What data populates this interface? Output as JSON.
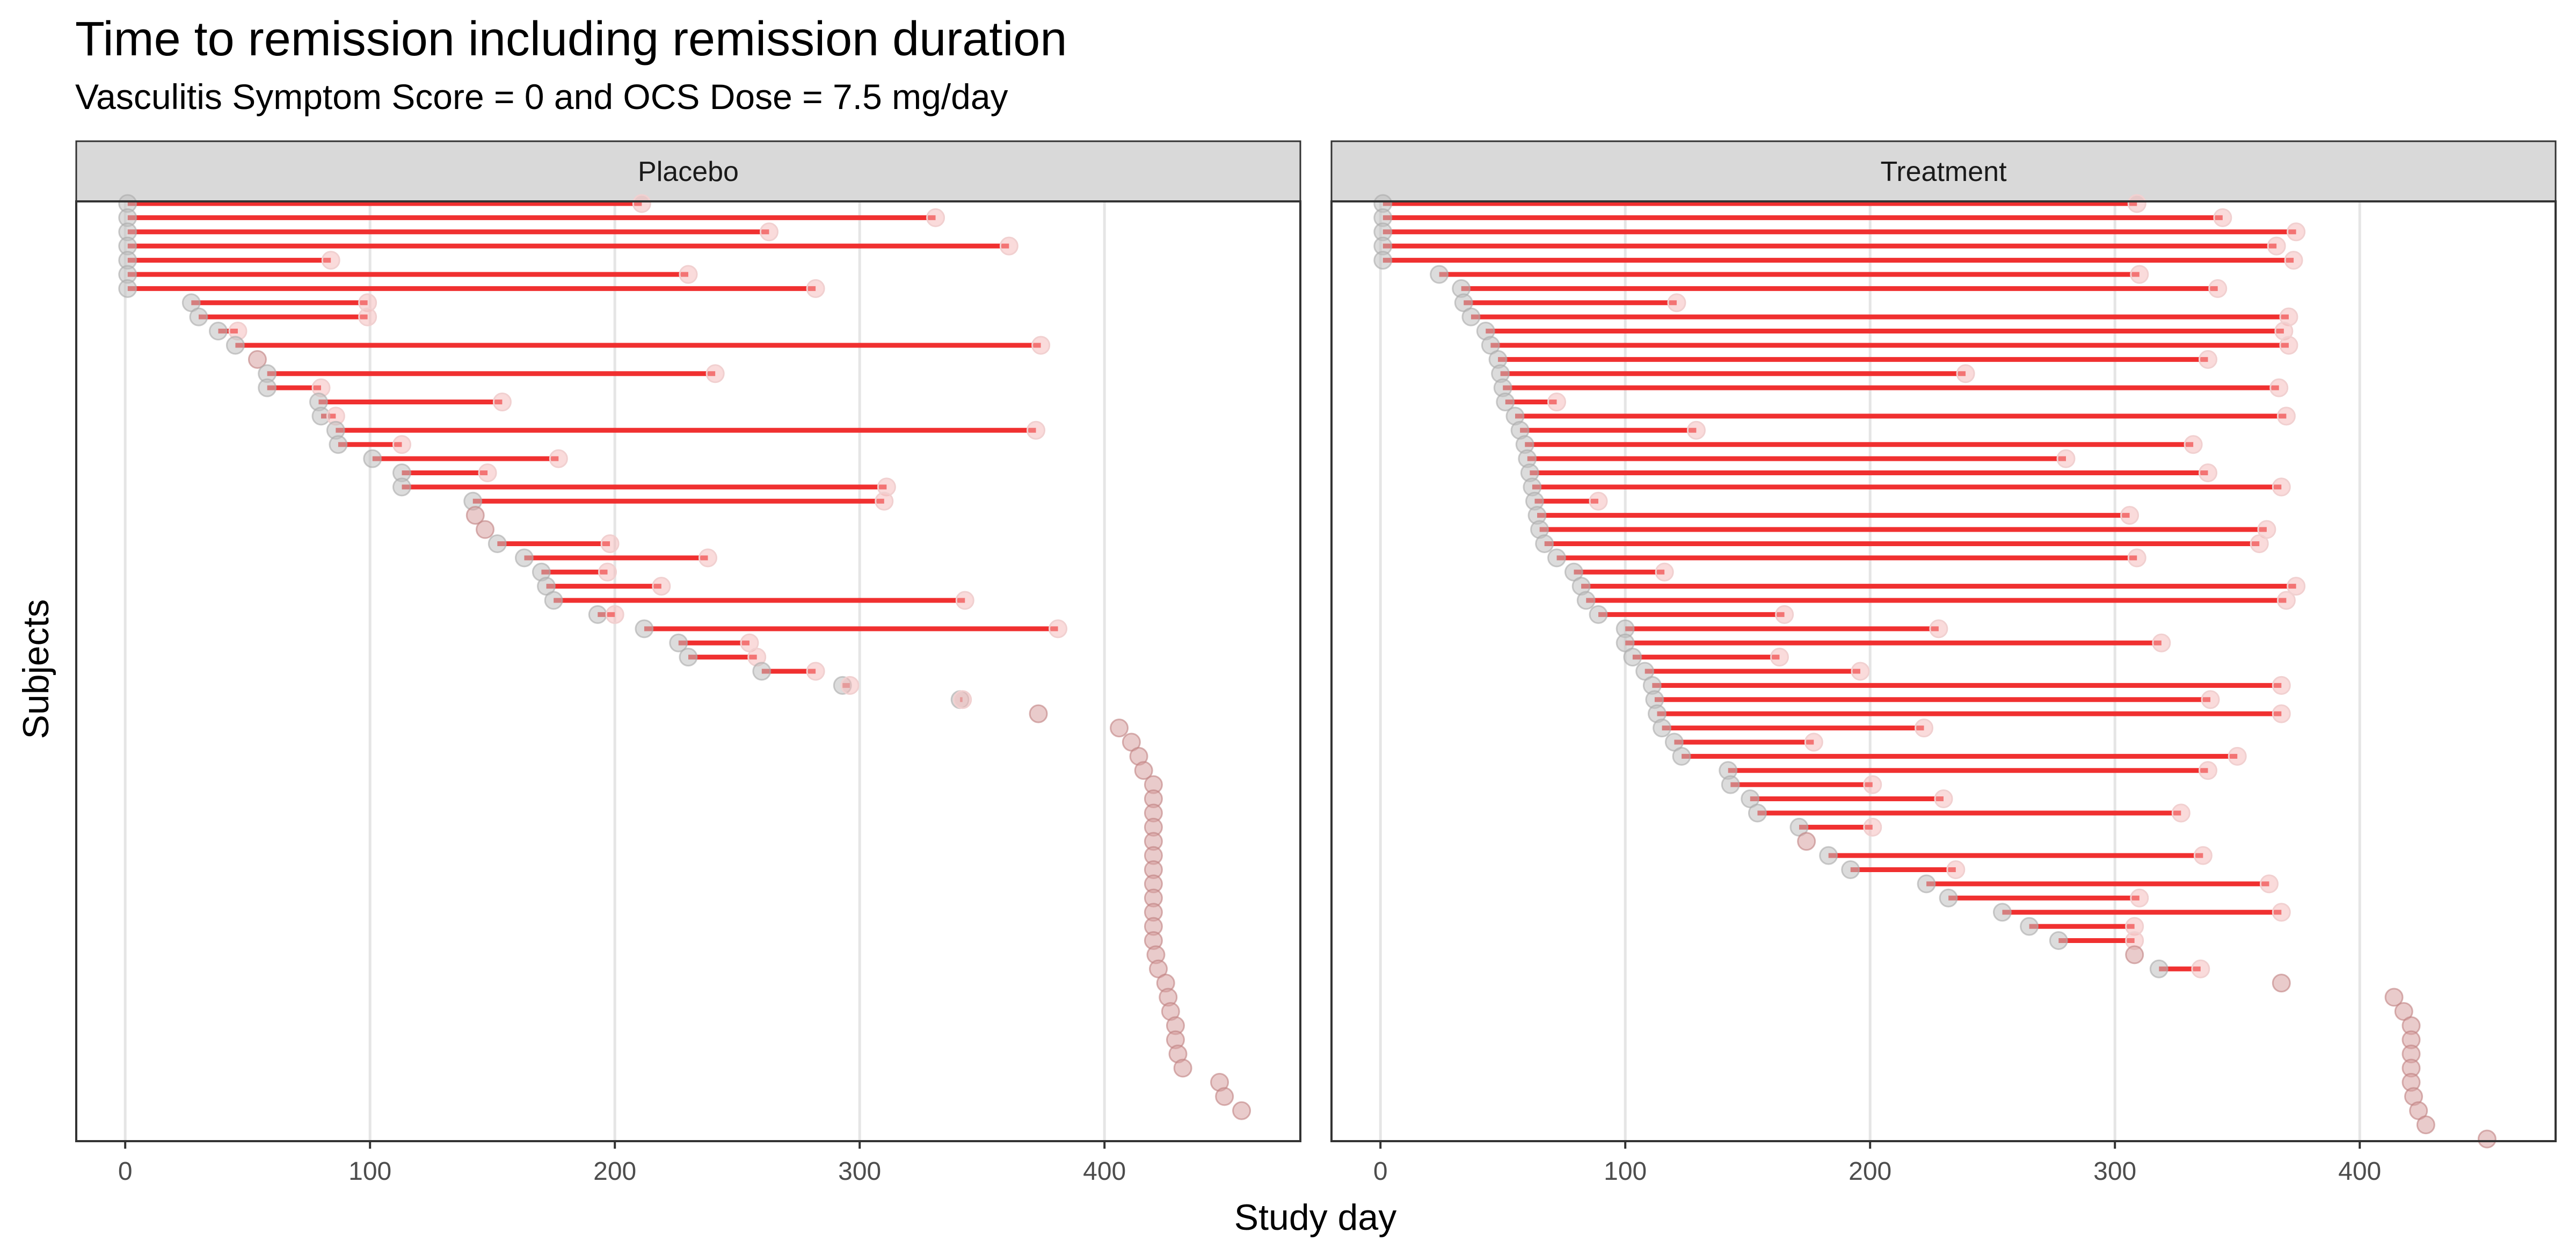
{
  "title": "Time to remission including remission duration",
  "subtitle": "Vasculitis Symptom Score = 0 and OCS Dose = 7.5 mg/day",
  "chart_data": {
    "type": "scatter",
    "title": "Time to remission including remission duration",
    "subtitle": "Vasculitis Symptom Score = 0 and OCS Dose = 7.5 mg/day",
    "xlabel": "Study day",
    "ylabel": "Subjects",
    "xlim": [
      -20,
      480
    ],
    "xticks": [
      0,
      100,
      200,
      300,
      400
    ],
    "grid": true,
    "colors": {
      "segment": "#f03030",
      "start_point": "#c0c0c0",
      "end_point": "#f6b8b8",
      "end_point_stroke": "#f1d0d0",
      "no_remission_point": "#d7a0a0",
      "no_remission_stroke": "#c08080",
      "strip_fill": "#d9d9d9",
      "gridline": "#e5e5e5"
    },
    "panels": [
      {
        "name": "Placebo",
        "subjects": [
          {
            "start": 1,
            "end": 211
          },
          {
            "start": 1,
            "end": 331
          },
          {
            "start": 1,
            "end": 263
          },
          {
            "start": 1,
            "end": 361
          },
          {
            "start": 1,
            "end": 84
          },
          {
            "start": 1,
            "end": 230
          },
          {
            "start": 1,
            "end": 282
          },
          {
            "start": 27,
            "end": 99
          },
          {
            "start": 30,
            "end": 99
          },
          {
            "start": 38,
            "end": 46
          },
          {
            "start": 45,
            "end": 374
          },
          {
            "start": 54,
            "end": null
          },
          {
            "start": 58,
            "end": 241
          },
          {
            "start": 58,
            "end": 80
          },
          {
            "start": 79,
            "end": 154
          },
          {
            "start": 80,
            "end": 86
          },
          {
            "start": 86,
            "end": 372
          },
          {
            "start": 87,
            "end": 113
          },
          {
            "start": 101,
            "end": 177
          },
          {
            "start": 113,
            "end": 148
          },
          {
            "start": 113,
            "end": 311
          },
          {
            "start": 142,
            "end": 310
          },
          {
            "start": 143,
            "end": null
          },
          {
            "start": 147,
            "end": null
          },
          {
            "start": 152,
            "end": 198
          },
          {
            "start": 163,
            "end": 238
          },
          {
            "start": 170,
            "end": 197
          },
          {
            "start": 172,
            "end": 219
          },
          {
            "start": 175,
            "end": 343
          },
          {
            "start": 193,
            "end": 200
          },
          {
            "start": 212,
            "end": 381
          },
          {
            "start": 226,
            "end": 255
          },
          {
            "start": 230,
            "end": 258
          },
          {
            "start": 260,
            "end": 282
          },
          {
            "start": 293,
            "end": 296
          },
          {
            "start": 341,
            "end": 342
          },
          {
            "start": 373,
            "end": null
          },
          {
            "start": 406,
            "end": null
          },
          {
            "start": 411,
            "end": null
          },
          {
            "start": 414,
            "end": null
          },
          {
            "start": 416,
            "end": null
          },
          {
            "start": 420,
            "end": null
          },
          {
            "start": 420,
            "end": null
          },
          {
            "start": 420,
            "end": null
          },
          {
            "start": 420,
            "end": null
          },
          {
            "start": 420,
            "end": null
          },
          {
            "start": 420,
            "end": null
          },
          {
            "start": 420,
            "end": null
          },
          {
            "start": 420,
            "end": null
          },
          {
            "start": 420,
            "end": null
          },
          {
            "start": 420,
            "end": null
          },
          {
            "start": 420,
            "end": null
          },
          {
            "start": 420,
            "end": null
          },
          {
            "start": 421,
            "end": null
          },
          {
            "start": 422,
            "end": null
          },
          {
            "start": 425,
            "end": null
          },
          {
            "start": 426,
            "end": null
          },
          {
            "start": 427,
            "end": null
          },
          {
            "start": 429,
            "end": null
          },
          {
            "start": 429,
            "end": null
          },
          {
            "start": 430,
            "end": null
          },
          {
            "start": 432,
            "end": null
          },
          {
            "start": 447,
            "end": null
          },
          {
            "start": 449,
            "end": null
          },
          {
            "start": 456,
            "end": null
          }
        ]
      },
      {
        "name": "Treatment",
        "subjects": [
          {
            "start": 1,
            "end": 309
          },
          {
            "start": 1,
            "end": 344
          },
          {
            "start": 1,
            "end": 374
          },
          {
            "start": 1,
            "end": 366
          },
          {
            "start": 1,
            "end": 373
          },
          {
            "start": 24,
            "end": 310
          },
          {
            "start": 33,
            "end": 342
          },
          {
            "start": 34,
            "end": 121
          },
          {
            "start": 37,
            "end": 371
          },
          {
            "start": 43,
            "end": 369
          },
          {
            "start": 45,
            "end": 371
          },
          {
            "start": 48,
            "end": 338
          },
          {
            "start": 49,
            "end": 239
          },
          {
            "start": 50,
            "end": 367
          },
          {
            "start": 51,
            "end": 72
          },
          {
            "start": 55,
            "end": 370
          },
          {
            "start": 57,
            "end": 129
          },
          {
            "start": 59,
            "end": 332
          },
          {
            "start": 60,
            "end": 280
          },
          {
            "start": 61,
            "end": 338
          },
          {
            "start": 62,
            "end": 368
          },
          {
            "start": 63,
            "end": 89
          },
          {
            "start": 64,
            "end": 306
          },
          {
            "start": 65,
            "end": 362
          },
          {
            "start": 67,
            "end": 359
          },
          {
            "start": 72,
            "end": 309
          },
          {
            "start": 79,
            "end": 116
          },
          {
            "start": 82,
            "end": 374
          },
          {
            "start": 84,
            "end": 370
          },
          {
            "start": 89,
            "end": 165
          },
          {
            "start": 100,
            "end": 228
          },
          {
            "start": 100,
            "end": 319
          },
          {
            "start": 103,
            "end": 163
          },
          {
            "start": 108,
            "end": 196
          },
          {
            "start": 111,
            "end": 368
          },
          {
            "start": 112,
            "end": 339
          },
          {
            "start": 113,
            "end": 368
          },
          {
            "start": 115,
            "end": 222
          },
          {
            "start": 120,
            "end": 177
          },
          {
            "start": 123,
            "end": 350
          },
          {
            "start": 142,
            "end": 338
          },
          {
            "start": 143,
            "end": 201
          },
          {
            "start": 151,
            "end": 230
          },
          {
            "start": 154,
            "end": 327
          },
          {
            "start": 171,
            "end": 201
          },
          {
            "start": 174,
            "end": null
          },
          {
            "start": 183,
            "end": 336
          },
          {
            "start": 192,
            "end": 235
          },
          {
            "start": 223,
            "end": 363
          },
          {
            "start": 232,
            "end": 310
          },
          {
            "start": 254,
            "end": 368
          },
          {
            "start": 265,
            "end": 308
          },
          {
            "start": 277,
            "end": 308
          },
          {
            "start": 308,
            "end": null
          },
          {
            "start": 318,
            "end": 335
          },
          {
            "start": 368,
            "end": null
          },
          {
            "start": 414,
            "end": null
          },
          {
            "start": 418,
            "end": null
          },
          {
            "start": 421,
            "end": null
          },
          {
            "start": 421,
            "end": null
          },
          {
            "start": 421,
            "end": null
          },
          {
            "start": 421,
            "end": null
          },
          {
            "start": 421,
            "end": null
          },
          {
            "start": 422,
            "end": null
          },
          {
            "start": 424,
            "end": null
          },
          {
            "start": 427,
            "end": null
          },
          {
            "start": 452,
            "end": null
          }
        ]
      }
    ]
  }
}
